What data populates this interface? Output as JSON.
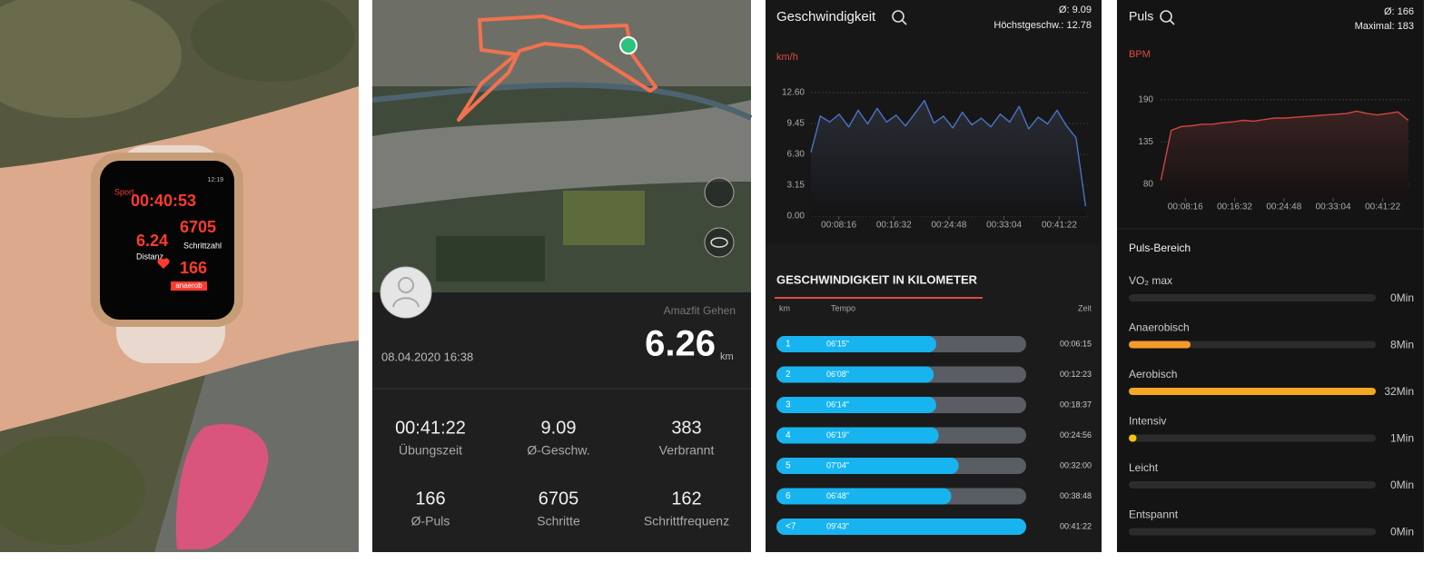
{
  "watch": {
    "sport": "Sport",
    "clock": "12:19",
    "duration": "00:40:53",
    "distance": "6.24",
    "distance_label": "Distanz",
    "steps": "6705",
    "steps_label": "Schrittzahl",
    "pulse": "166",
    "zone": "anaerob"
  },
  "workout": {
    "source": "Amazfit Gehen",
    "date": "08.04.2020 16:38",
    "distance": "6.26",
    "unit": "km",
    "stats": [
      {
        "value": "00:41:22",
        "label": "Übungszeit"
      },
      {
        "value": "9.09",
        "label": "Ø-Geschw."
      },
      {
        "value": "383",
        "label": "Verbrannt"
      },
      {
        "value": "166",
        "label": "Ø-Puls"
      },
      {
        "value": "6705",
        "label": "Schritte"
      },
      {
        "value": "162",
        "label": "Schrittfrequenz"
      }
    ]
  },
  "speed_header": {
    "title": "Geschwindigkeit",
    "avg": "Ø: 9.09",
    "max": "Höchstgeschw.: 12.78"
  },
  "pulse_header": {
    "title": "Puls",
    "avg": "Ø: 166",
    "max": "Maximal: 183"
  },
  "chart_data": [
    {
      "type": "line",
      "y_label": "km/h",
      "x": [
        245,
        330,
        415,
        500,
        586,
        671,
        756,
        842,
        927,
        1012,
        1097,
        1183,
        1268,
        1353,
        1439,
        1524,
        1609,
        1695,
        1780,
        1865,
        1950,
        2036,
        2121,
        2206,
        2292,
        2377,
        2462,
        2548,
        2633,
        2719
      ],
      "series": [
        {
          "color": "#4a72c8",
          "values": [
            6.5,
            10.2,
            9.6,
            10.4,
            9.1,
            10.8,
            9.4,
            11.0,
            9.6,
            10.3,
            9.2,
            10.5,
            11.8,
            9.5,
            10.2,
            9.0,
            10.6,
            9.3,
            10.0,
            9.1,
            10.4,
            9.6,
            11.2,
            8.9,
            10.1,
            9.4,
            10.8,
            9.2,
            8.0,
            1.0
          ]
        }
      ],
      "xlim": [
        0,
        2740
      ],
      "ylim": [
        0,
        12.6
      ],
      "yticks": [
        {
          "value": 0,
          "label": "0.00"
        },
        3.15,
        {
          "value": 6.3,
          "label": "6.30"
        },
        9.45,
        {
          "value": 12.6,
          "label": "12.60"
        }
      ],
      "xticks": [
        {
          "value": 496,
          "label": "00:08:16"
        },
        {
          "value": 992,
          "label": "00:16:32"
        },
        {
          "value": 1488,
          "label": "00:24:48"
        },
        {
          "value": 1984,
          "label": "00:33:04"
        },
        {
          "value": 2482,
          "label": "00:41:22"
        }
      ],
      "grid": true
    },
    {
      "type": "line",
      "y_label": "BPM",
      "x": [
        250,
        354,
        458,
        561,
        665,
        769,
        873,
        976,
        1080,
        1184,
        1288,
        1391,
        1495,
        1599,
        1703,
        1806,
        1910,
        2014,
        2118,
        2221,
        2325,
        2429,
        2533,
        2636,
        2740
      ],
      "series": [
        {
          "color": "#d0453f",
          "values": [
            85,
            150,
            155,
            156,
            158,
            158,
            160,
            161,
            163,
            162,
            164,
            166,
            166,
            167,
            168,
            169,
            170,
            171,
            172,
            175,
            172,
            170,
            172,
            174,
            163
          ]
        }
      ],
      "xlim": [
        0,
        2760
      ],
      "ylim": [
        62,
        205
      ],
      "yticks": [
        80,
        135,
        190
      ],
      "xticks": [
        {
          "value": 496,
          "label": "00:08:16"
        },
        {
          "value": 992,
          "label": "00:16:32"
        },
        {
          "value": 1488,
          "label": "00:24:48"
        },
        {
          "value": 1984,
          "label": "00:33:04"
        },
        {
          "value": 2482,
          "label": "00:41:22"
        }
      ],
      "grid": true
    }
  ],
  "speed_table": {
    "title": "GESCHWINDIGKEIT IN KILOMETER",
    "columns": [
      "km",
      "Tempo",
      "Zeit"
    ],
    "xlim": [
      0,
      100
    ],
    "rows": [
      {
        "km": "1",
        "tempo": "06'15\"",
        "time": "00:06:15",
        "bar": 64
      },
      {
        "km": "2",
        "tempo": "06'08\"",
        "time": "00:12:23",
        "bar": 63
      },
      {
        "km": "3",
        "tempo": "06'14\"",
        "time": "00:18:37",
        "bar": 64
      },
      {
        "km": "4",
        "tempo": "06'19\"",
        "time": "00:24:56",
        "bar": 65
      },
      {
        "km": "5",
        "tempo": "07'04\"",
        "time": "00:32:00",
        "bar": 73
      },
      {
        "km": "6",
        "tempo": "06'48\"",
        "time": "00:38:48",
        "bar": 70
      },
      {
        "km": "<7",
        "tempo": "09'43\"",
        "time": "00:41:22",
        "bar": 100
      }
    ]
  },
  "zones": {
    "title": "Puls-Bereich",
    "xlim": [
      0,
      32
    ],
    "items": [
      {
        "name": "VO₂ max",
        "value": 0,
        "value_label": "0Min",
        "color": "#e74c3c"
      },
      {
        "name": "Anaerobisch",
        "value": 8,
        "value_label": "8Min",
        "color": "#f39a2b"
      },
      {
        "name": "Aerobisch",
        "value": 32,
        "value_label": "32Min",
        "color": "#f5a623"
      },
      {
        "name": "Intensiv",
        "value": 1,
        "value_label": "1Min",
        "color": "#f2c21b"
      },
      {
        "name": "Leicht",
        "value": 0,
        "value_label": "0Min",
        "color": "#6cc04a"
      },
      {
        "name": "Entspannt",
        "value": 0,
        "value_label": "0Min",
        "color": "#4aa3df"
      }
    ]
  }
}
